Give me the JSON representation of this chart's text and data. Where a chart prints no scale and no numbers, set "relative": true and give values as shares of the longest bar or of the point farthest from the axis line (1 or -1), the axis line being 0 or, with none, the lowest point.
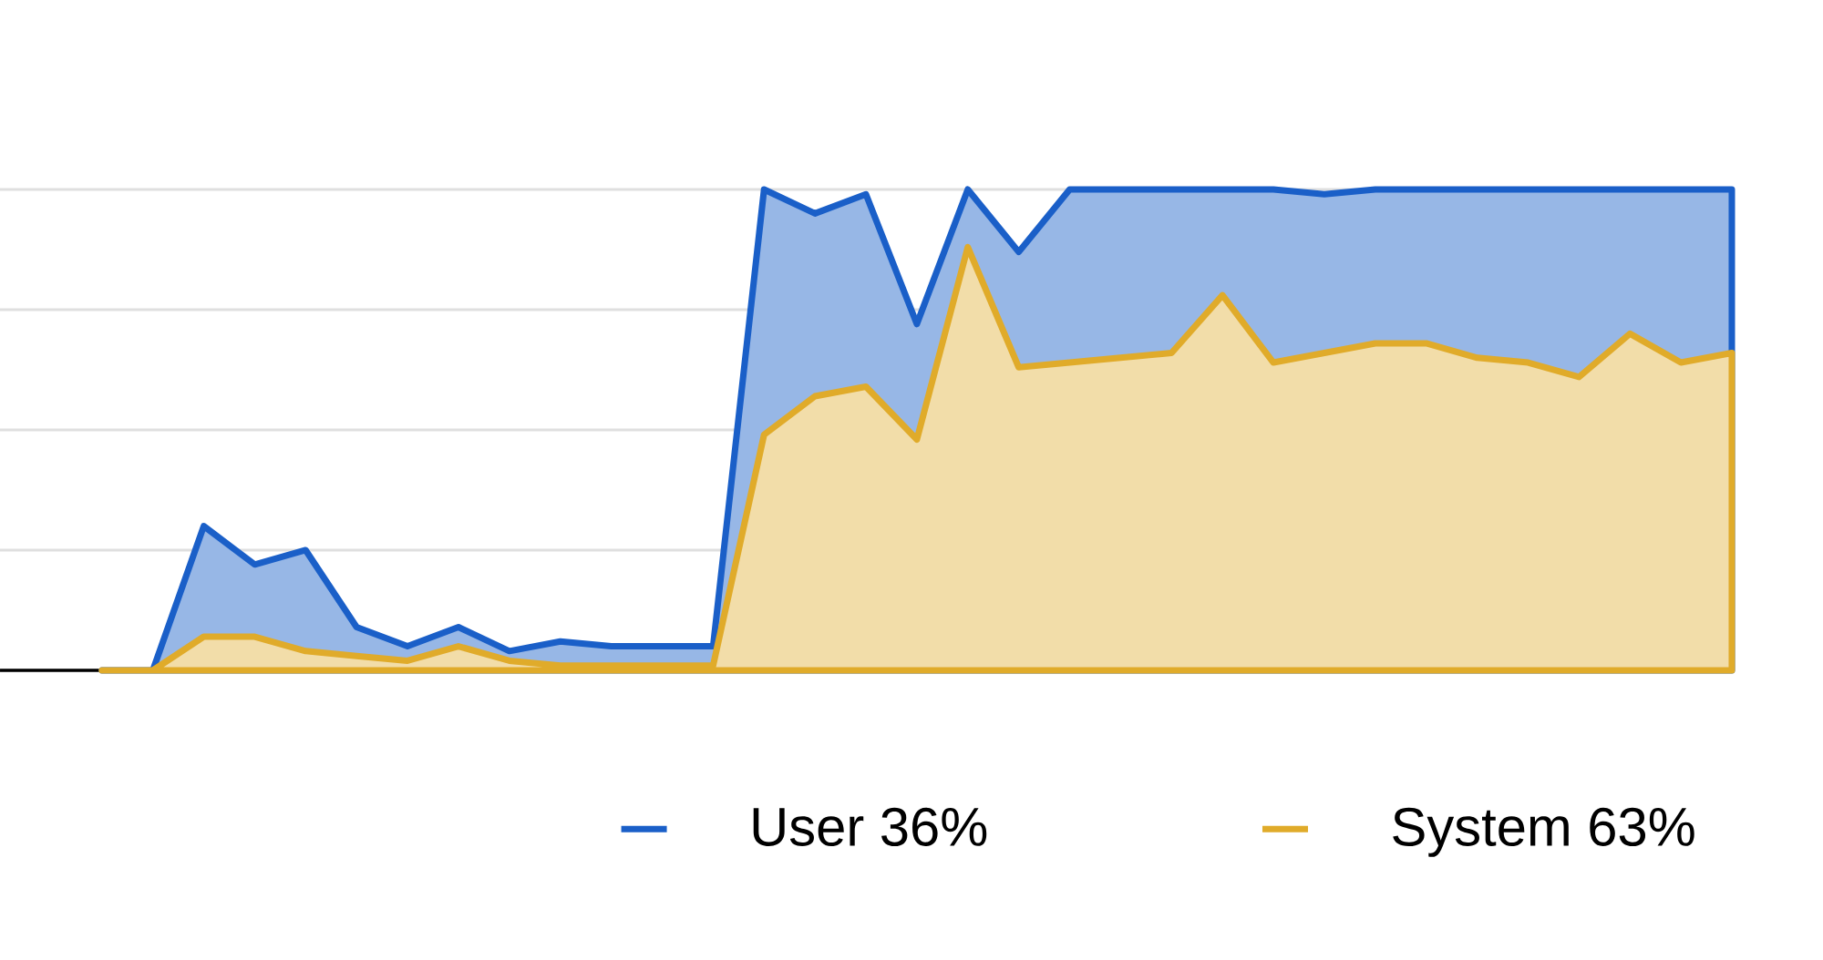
{
  "chart_data": {
    "type": "area",
    "relative": true,
    "grid": "y",
    "legend": "bottom",
    "categories": [
      null,
      null,
      null,
      null,
      null,
      null,
      null,
      null,
      null,
      null,
      null,
      null,
      null,
      null,
      null,
      null,
      null,
      null,
      null,
      null,
      null,
      null,
      null,
      null,
      null,
      null,
      null,
      null,
      null,
      null,
      null,
      null,
      null
    ],
    "series": [
      {
        "name": "User 36%",
        "color": "#1a5fc8",
        "values": [
          0,
          0,
          0.3,
          0.22,
          0.25,
          0.09,
          0.05,
          0.09,
          0.04,
          0.06,
          0.05,
          0.05,
          0.05,
          1,
          0.95,
          0.99,
          0.72,
          1,
          0.87,
          1,
          1,
          1,
          1,
          1,
          0.99,
          1,
          1,
          1,
          1,
          1,
          1,
          1,
          1
        ]
      },
      {
        "name": "System 63%",
        "color": "#e0ab2a",
        "values": [
          0,
          0,
          0.07,
          0.07,
          0.04,
          0.03,
          0.02,
          0.05,
          0.02,
          0.01,
          0.01,
          0.01,
          0.01,
          0.49,
          0.57,
          0.59,
          0.48,
          0.88,
          0.63,
          0.64,
          0.65,
          0.66,
          0.78,
          0.64,
          0.66,
          0.68,
          0.68,
          0.65,
          0.64,
          0.61,
          0.7,
          0.64,
          0.66
        ]
      }
    ]
  }
}
